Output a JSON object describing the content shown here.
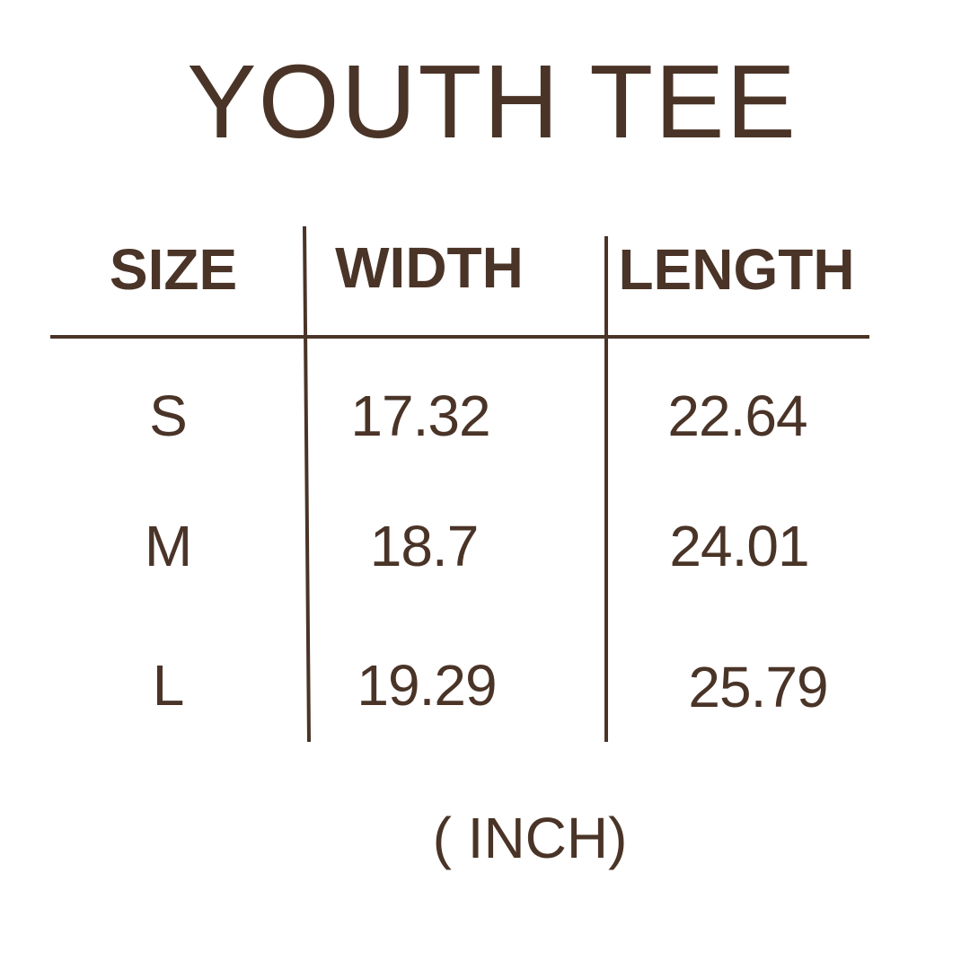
{
  "title": "YOUTH TEE",
  "table": {
    "headers": [
      "SIZE",
      "WIDTH",
      "LENGTH"
    ],
    "rows": [
      {
        "size": "S",
        "width": "17.32",
        "length": "22.64"
      },
      {
        "size": "M",
        "width": "18.7",
        "length": "24.01"
      },
      {
        "size": "L",
        "width": "19.29",
        "length": "25.79"
      }
    ]
  },
  "unit_note": "( INCH)",
  "colors": {
    "text": "#4a3427",
    "background": "#ffffff"
  }
}
